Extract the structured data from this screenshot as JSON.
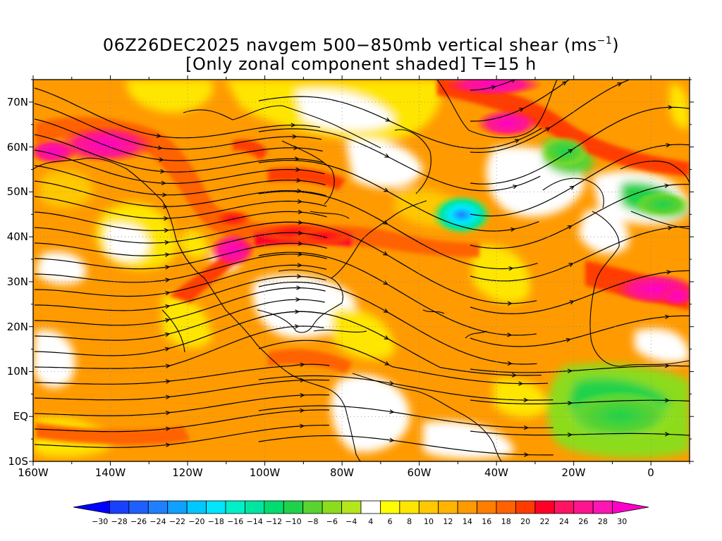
{
  "title": {
    "line1": "06Z26DEC2025 navgem 500−850mb vertical shear (ms",
    "line1_sup": "−1",
    "line1_end": ")",
    "line2": "[Only zonal component shaded] T=15 h"
  },
  "map": {
    "lon_range": [
      -160,
      10
    ],
    "lat_range": [
      -10,
      75
    ],
    "x_ticks": [
      "160W",
      "140W",
      "120W",
      "100W",
      "80W",
      "60W",
      "40W",
      "20W",
      "0"
    ],
    "y_ticks": [
      "70N",
      "60N",
      "50N",
      "40N",
      "30N",
      "20N",
      "10N",
      "EQ",
      "10S"
    ],
    "grid": "dotted"
  },
  "colorbar": {
    "labels": [
      "−30",
      "−28",
      "−26",
      "−24",
      "−22",
      "−20",
      "−18",
      "−16",
      "−14",
      "−12",
      "−10",
      "−8",
      "−6",
      "−4",
      "4",
      "6",
      "8",
      "10",
      "12",
      "14",
      "16",
      "18",
      "20",
      "22",
      "24",
      "26",
      "28",
      "30"
    ],
    "colors": [
      "#0000ff",
      "#1a40ff",
      "#1e60ff",
      "#1e80ff",
      "#10a0ff",
      "#00c8ff",
      "#00e6ff",
      "#00f0c8",
      "#00e6a0",
      "#00dc6e",
      "#20d24a",
      "#5ad232",
      "#8cdc1e",
      "#b4e61e",
      "#ffffff",
      "#ffff00",
      "#ffe600",
      "#ffc800",
      "#ffb400",
      "#ff9a00",
      "#ff7e00",
      "#ff6200",
      "#ff3c00",
      "#ff0028",
      "#ff1464",
      "#ff1490",
      "#ff14b4",
      "#ff00c8"
    ]
  }
}
